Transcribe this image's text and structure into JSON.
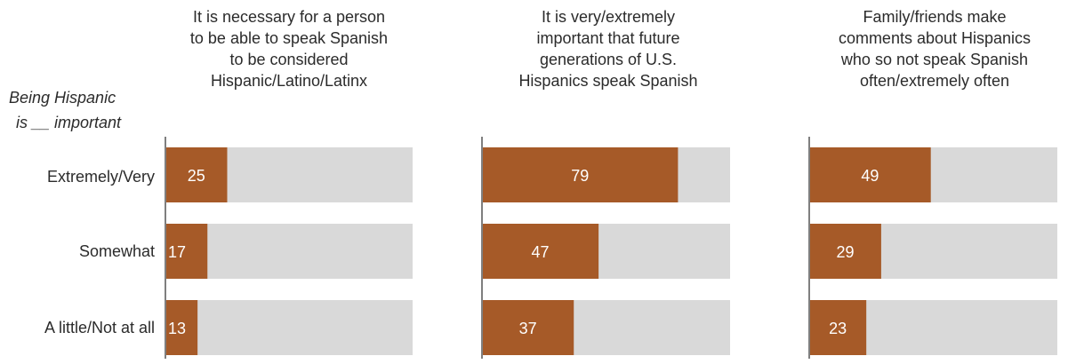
{
  "chart_data": {
    "type": "bar",
    "orientation": "horizontal",
    "row_header": [
      "Being Hispanic",
      "is __ important"
    ],
    "categories": [
      "Extremely/Very",
      "Somewhat",
      "A little/Not at all"
    ],
    "xlim": [
      0,
      100
    ],
    "grid": false,
    "colors": {
      "bar": "#a65a28",
      "track": "#d9d9d9",
      "axis": "#7f7f7f"
    },
    "panels": [
      {
        "title": [
          "It is necessary for a person",
          "to be able to speak Spanish",
          "to be considered",
          "Hispanic/Latino/Latinx"
        ],
        "values": [
          25,
          17,
          13
        ]
      },
      {
        "title": [
          "It is very/extremely",
          "important that future",
          "generations of U.S.",
          "Hispanics speak Spanish"
        ],
        "values": [
          79,
          47,
          37
        ]
      },
      {
        "title": [
          "Family/friends make",
          "comments about Hispanics",
          "who so not speak Spanish",
          "often/extremely often"
        ],
        "values": [
          49,
          29,
          23
        ]
      }
    ]
  }
}
